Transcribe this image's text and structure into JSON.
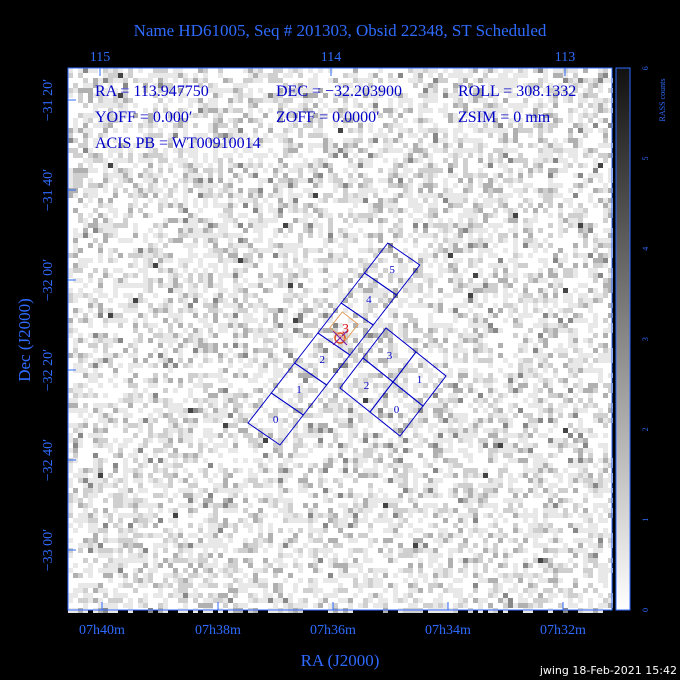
{
  "header": {
    "title": "Name HD61005, Seq # 201303, Obsid 22348, ST Scheduled"
  },
  "info": [
    [
      "RA = 113.947750",
      "DEC = −32.203900",
      "ROLL = 308.1332"
    ],
    [
      "YOFF =   0.000′",
      "ZOFF =  0.0000′",
      "ZSIM = 0 mm"
    ],
    [
      "ACIS PB = WT00910014"
    ]
  ],
  "axes": {
    "top_ticks": [
      "115",
      "114",
      "113"
    ],
    "left_ticks": [
      "−31 20′",
      "−31 40′",
      "−32 00′",
      "−32 20′",
      "−32 40′",
      "−33 00′"
    ],
    "bottom_ticks": [
      "07h40m",
      "07h38m",
      "07h36m",
      "07h34m",
      "07h32m"
    ],
    "x_label": "RA (J2000)",
    "y_label": "Dec (J2000)"
  },
  "colorbar": {
    "label": "RASS counts",
    "ticks": [
      "0",
      "1",
      "2",
      "3",
      "4",
      "5",
      "6"
    ]
  },
  "chips": {
    "s_array": [
      "0",
      "1",
      "2",
      "3",
      "4",
      "5"
    ],
    "i_array": [
      "2",
      "3",
      "0",
      "1"
    ]
  },
  "footer": "jwing 18-Feb-2021 15:42"
}
